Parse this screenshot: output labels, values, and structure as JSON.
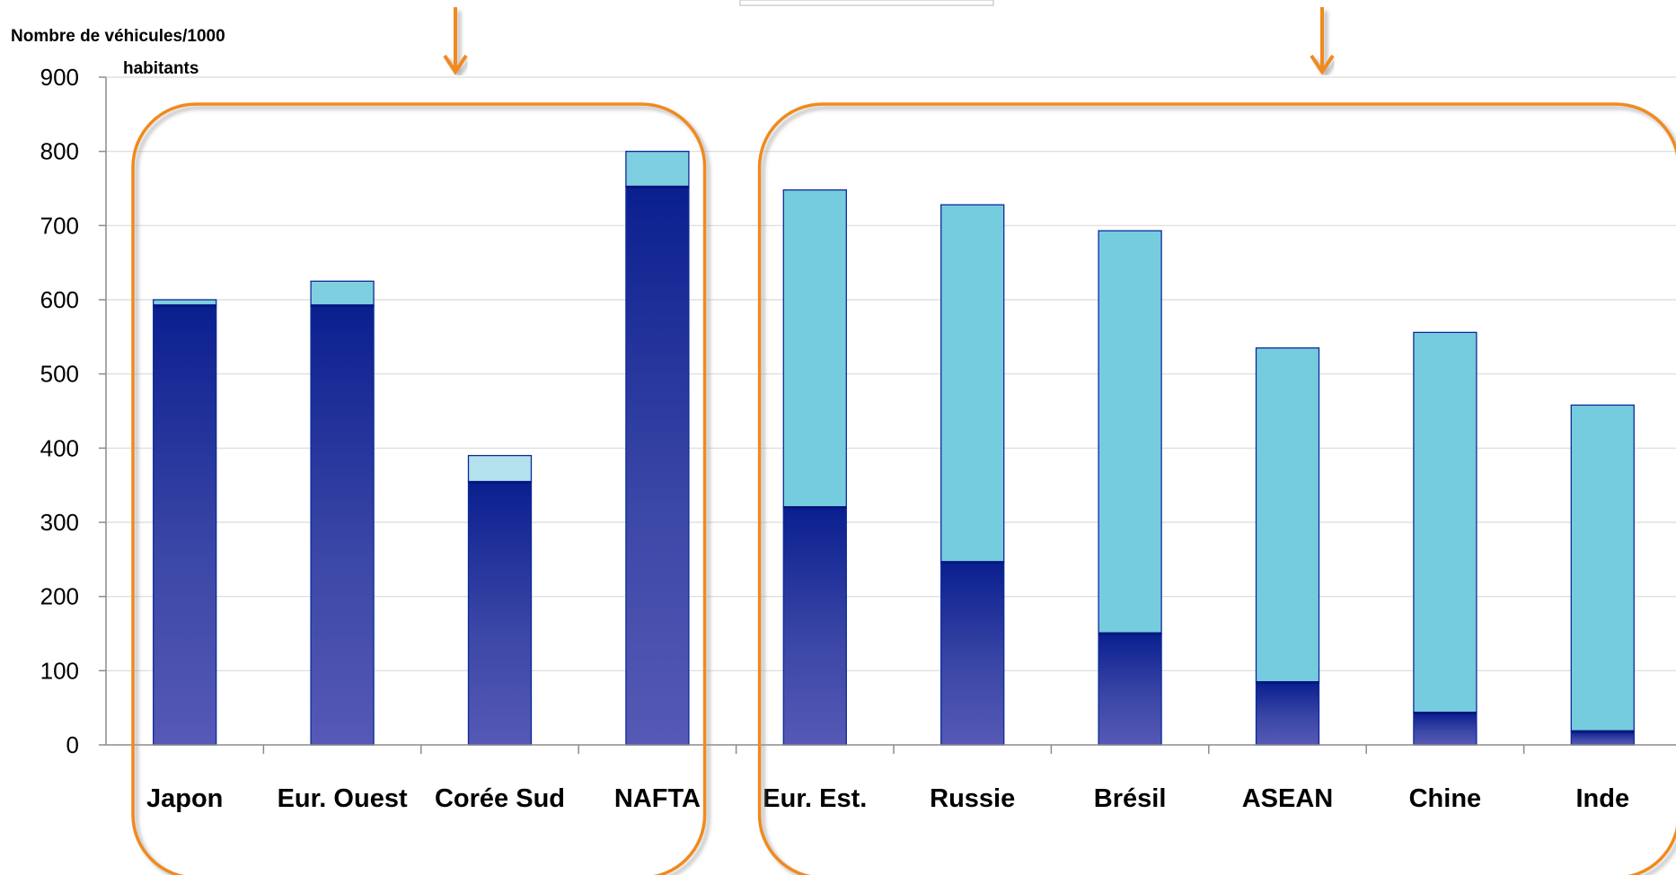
{
  "chart_data": {
    "type": "bar",
    "stacked": true,
    "ylabel": [
      "Nombre de véhicules/1000",
      "habitants"
    ],
    "ylim": [
      0,
      900
    ],
    "yticks": [
      0,
      100,
      200,
      300,
      400,
      500,
      600,
      700,
      800,
      900
    ],
    "grid": true,
    "legend": "none",
    "categories": [
      "Japon",
      "Eur. Ouest",
      "Corée Sud",
      "NAFTA",
      "Eur. Est.",
      "Russie",
      "Brésil",
      "ASEAN",
      "Chine",
      "Inde"
    ],
    "groups": [
      {
        "categories": [
          "Japon",
          "Eur. Ouest",
          "Corée Sud",
          "NAFTA"
        ],
        "outline_color": "#f08a1c"
      },
      {
        "categories": [
          "Eur. Est.",
          "Russie",
          "Brésil",
          "ASEAN",
          "Chine",
          "Inde"
        ],
        "outline_color": "#f08a1c"
      }
    ],
    "series": [
      {
        "values": [
          592,
          592,
          354,
          752,
          320,
          246,
          150,
          84,
          43,
          18
        ],
        "color": "#0a1f8f"
      },
      {
        "values": [
          8,
          33,
          36,
          48,
          428,
          482,
          543,
          451,
          513,
          440
        ],
        "colors": [
          "#7ecfe0",
          "#7ecfe0",
          "#b3e2ee",
          "#7ecfe0",
          "#76ccdf",
          "#76ccdf",
          "#76ccdf",
          "#76ccdf",
          "#76ccdf",
          "#76ccdf"
        ]
      }
    ],
    "colors": {
      "axis": "#8c8c8c",
      "grid": "#d9d9d9",
      "bar_outline": "#0c2a9a",
      "arrow": "#f08a1c"
    }
  }
}
